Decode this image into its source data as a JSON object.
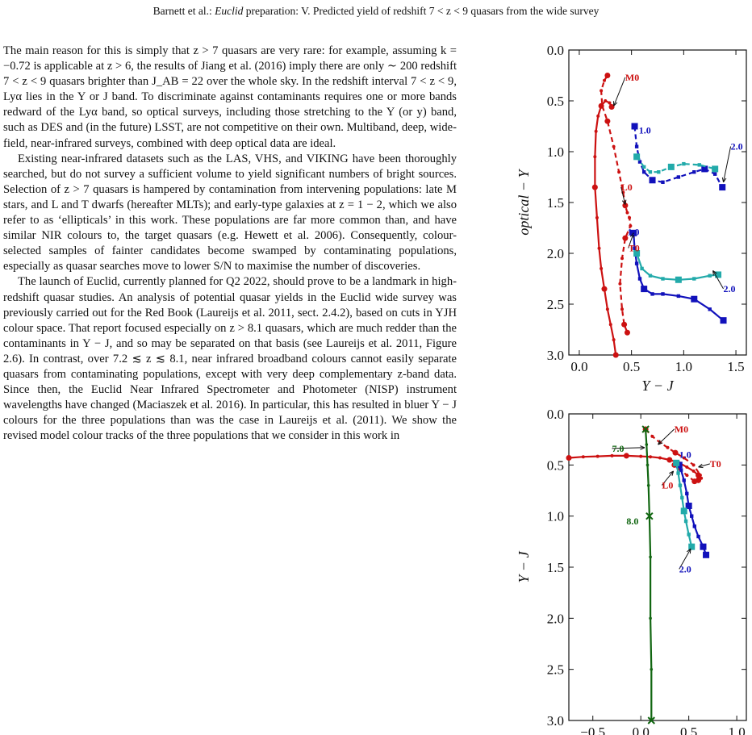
{
  "header": {
    "prefix": "Barnett et al.: ",
    "journal": "Euclid",
    "suffix": " preparation: V. Predicted yield of redshift 7 < z < 9 quasars from the wide survey"
  },
  "body": {
    "p1": "The main reason for this is simply that z > 7 quasars are very rare: for example, assuming k = −0.72 is applicable at z > 6, the results of Jiang et al. (2016) imply there are only ∼ 200 redshift 7 < z < 9 quasars brighter than J_AB = 22 over the whole sky. In the redshift interval 7 < z < 9, Lyα lies in the Y or J band. To discriminate against contaminants requires one or more bands redward of the Lyα band, so optical surveys, including those stretching to the Y (or y) band, such as DES and (in the future) LSST, are not competitive on their own. Multiband, deep, wide-field, near-infrared surveys, combined with deep optical data are ideal.",
    "p2": "Existing near-infrared datasets such as the LAS, VHS, and VIKING have been thoroughly searched, but do not survey a sufficient volume to yield significant numbers of bright sources. Selection of z > 7 quasars is hampered by contamination from intervening populations: late M stars, and L and T dwarfs (hereafter MLTs); and early-type galaxies at z = 1 − 2, which we also refer to as ‘ellipticals’ in this work. These populations are far more common than, and have similar NIR colours to, the target quasars (e.g. Hewett et al. 2006). Consequently, colour-selected samples of fainter candidates become swamped by contaminating populations, especially as quasar searches move to lower S/N to maximise the number of discoveries.",
    "p3": "The launch of Euclid, currently planned for Q2 2022, should prove to be a landmark in high-redshift quasar studies. An analysis of potential quasar yields in the Euclid wide survey was previously carried out for the Red Book (Laureijs et al. 2011, sect. 2.4.2), based on cuts in YJH colour space. That report focused especially on z > 8.1 quasars, which are much redder than the contaminants in Y − J, and so may be separated on that basis (see Laureijs et al. 2011, Figure 2.6). In contrast, over 7.2 ≲ z ≲ 8.1, near infrared broadband colours cannot easily separate quasars from contaminating populations, except with very deep complementary z-band data. Since then, the Euclid Near Infrared Spectrometer and Photometer (NISP) instrument wavelengths have changed (Maciaszek et al. 2016). In particular, this has resulted in bluer Y − J colours for the three populations than was the case in Laureijs et al. (2011). We show the revised model colour tracks of the three populations that we consider in this work in"
  },
  "chart_data": [
    {
      "type": "line",
      "xlabel": "Y − J",
      "ylabel": "optical − Y",
      "xlim": [
        -0.1,
        1.6
      ],
      "ylim": [
        3.0,
        0.0
      ],
      "xticks": [
        "0.0",
        "0.5",
        "1.0",
        "1.5"
      ],
      "yticks": [
        "0.0",
        "0.5",
        "1.0",
        "1.5",
        "2.0",
        "2.5",
        "3.0"
      ],
      "labels": [
        "M0",
        "L0",
        "T0",
        "1.0",
        "2.0",
        "1.0",
        "2.0"
      ],
      "series": [
        {
          "color": "#cc1111",
          "style": "solid",
          "x": [
            0.35,
            0.33,
            0.3,
            0.27,
            0.24,
            0.21,
            0.19,
            0.17,
            0.15,
            0.15,
            0.16,
            0.18,
            0.21,
            0.25,
            0.29,
            0.31
          ],
          "y": [
            3.0,
            2.85,
            2.7,
            2.55,
            2.35,
            2.15,
            1.95,
            1.65,
            1.35,
            1.05,
            0.8,
            0.65,
            0.55,
            0.5,
            0.52,
            0.56
          ]
        },
        {
          "color": "#cc1111",
          "style": "dashed",
          "x": [
            0.27,
            0.24,
            0.21,
            0.22,
            0.27,
            0.33,
            0.38,
            0.42,
            0.44,
            0.46,
            0.48,
            0.49,
            0.44,
            0.41,
            0.39,
            0.41,
            0.43,
            0.46
          ],
          "y": [
            0.25,
            0.3,
            0.4,
            0.55,
            0.7,
            0.95,
            1.2,
            1.4,
            1.53,
            1.6,
            1.65,
            1.73,
            1.85,
            2.05,
            2.3,
            2.55,
            2.7,
            2.78
          ]
        },
        {
          "color": "#1111bb",
          "style": "dashed",
          "x": [
            0.53,
            0.55,
            0.58,
            0.62,
            0.7,
            0.8,
            0.95,
            1.1,
            1.2,
            1.3,
            1.37
          ],
          "y": [
            0.75,
            0.95,
            1.1,
            1.2,
            1.28,
            1.3,
            1.25,
            1.2,
            1.17,
            1.22,
            1.35
          ]
        },
        {
          "color": "#22aaaa",
          "style": "dashed",
          "x": [
            0.55,
            0.62,
            0.68,
            0.76,
            0.88,
            1.0,
            1.15,
            1.3
          ],
          "y": [
            1.05,
            1.15,
            1.2,
            1.2,
            1.15,
            1.12,
            1.13,
            1.17
          ]
        },
        {
          "color": "#1111bb",
          "style": "solid",
          "x": [
            0.52,
            0.53,
            0.55,
            0.58,
            0.62,
            0.7,
            0.8,
            0.95,
            1.1,
            1.25,
            1.38
          ],
          "y": [
            1.8,
            1.95,
            2.1,
            2.25,
            2.35,
            2.4,
            2.4,
            2.42,
            2.45,
            2.55,
            2.66
          ]
        },
        {
          "color": "#22aaaa",
          "style": "solid",
          "x": [
            0.55,
            0.6,
            0.68,
            0.8,
            0.95,
            1.1,
            1.25,
            1.33
          ],
          "y": [
            2.0,
            2.15,
            2.22,
            2.25,
            2.26,
            2.25,
            2.22,
            2.21
          ]
        }
      ]
    },
    {
      "type": "line",
      "xlabel": "",
      "ylabel": "Y − J",
      "xlim": [
        -0.75,
        1.1
      ],
      "ylim": [
        3.0,
        0.0
      ],
      "xticks": [
        "−0.5",
        "0.0",
        "0.5",
        "1.0"
      ],
      "yticks": [
        "0.0",
        "0.5",
        "1.0",
        "1.5",
        "2.0",
        "2.5",
        "3.0"
      ],
      "labels": [
        "M0",
        "7.0",
        "1.0",
        "T0",
        "L0",
        "8.0",
        "2.0"
      ],
      "series": [
        {
          "color": "#cc1111",
          "style": "solid",
          "x": [
            -0.75,
            -0.6,
            -0.45,
            -0.3,
            -0.15,
            0.0,
            0.1,
            0.2,
            0.3,
            0.4,
            0.48,
            0.55,
            0.6,
            0.63,
            0.6
          ],
          "y": [
            0.43,
            0.42,
            0.415,
            0.41,
            0.41,
            0.415,
            0.42,
            0.43,
            0.45,
            0.48,
            0.52,
            0.56,
            0.6,
            0.63,
            0.65
          ]
        },
        {
          "color": "#cc1111",
          "style": "dashed",
          "x": [
            0.05,
            0.12,
            0.2,
            0.28,
            0.36,
            0.45,
            0.55,
            0.62,
            0.56,
            0.48,
            0.4,
            0.35
          ],
          "y": [
            0.15,
            0.22,
            0.28,
            0.33,
            0.38,
            0.43,
            0.5,
            0.6,
            0.66,
            0.6,
            0.54,
            0.5
          ]
        },
        {
          "color": "#1111bb",
          "style": "solid",
          "x": [
            0.4,
            0.42,
            0.45,
            0.48,
            0.5,
            0.53,
            0.56,
            0.6,
            0.65,
            0.68
          ],
          "y": [
            0.5,
            0.55,
            0.65,
            0.78,
            0.9,
            1.0,
            1.1,
            1.2,
            1.3,
            1.38
          ]
        },
        {
          "color": "#22aaaa",
          "style": "solid",
          "x": [
            0.37,
            0.39,
            0.41,
            0.43,
            0.45,
            0.47,
            0.5,
            0.53
          ],
          "y": [
            0.48,
            0.58,
            0.7,
            0.82,
            0.95,
            1.05,
            1.18,
            1.3
          ]
        },
        {
          "color": "#116611",
          "style": "solid",
          "x": [
            0.05,
            0.06,
            0.07,
            0.08,
            0.09,
            0.1,
            0.1,
            0.11,
            0.11
          ],
          "y": [
            0.15,
            0.3,
            0.5,
            0.7,
            1.0,
            1.4,
            2.0,
            2.5,
            3.0
          ]
        }
      ]
    }
  ]
}
